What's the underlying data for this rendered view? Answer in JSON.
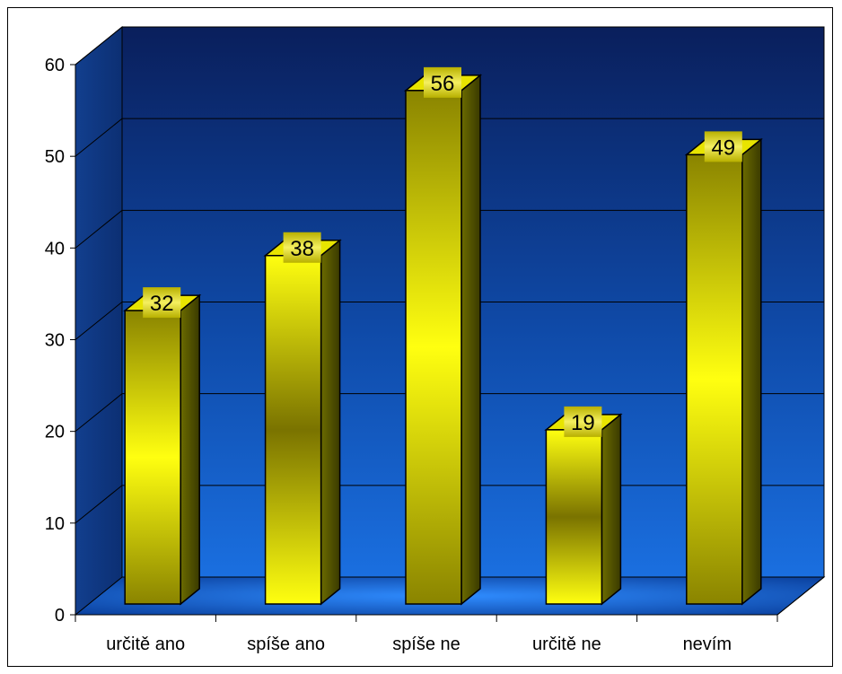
{
  "colors": {
    "wall_top": "#0a1f5c",
    "wall_bottom": "#1a6fe0",
    "bar_light": "#ffff00",
    "bar_dark": "#6b6b00",
    "label_bg": "#c9c200",
    "gridline": "#000000"
  },
  "chart_data": {
    "type": "bar",
    "categories": [
      "určitě ano",
      "spíše ano",
      "spíše ne",
      "určitě ne",
      "nevím"
    ],
    "values": [
      32,
      38,
      56,
      19,
      49
    ],
    "title": "",
    "xlabel": "",
    "ylabel": "",
    "ylim": [
      0,
      60
    ],
    "yticks": [
      0,
      10,
      20,
      30,
      40,
      50,
      60
    ],
    "grid": true,
    "legend": "none",
    "style": "3d-column"
  }
}
